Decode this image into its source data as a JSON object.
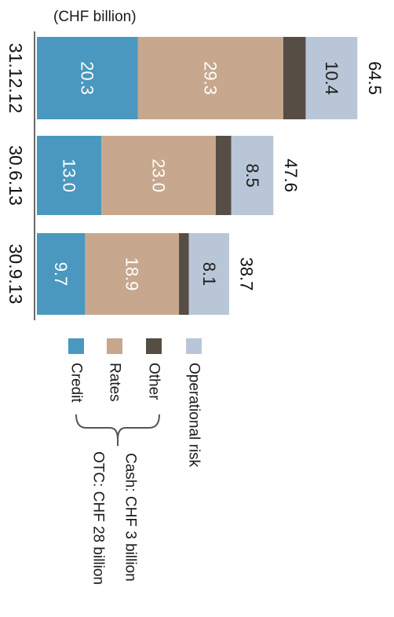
{
  "chart_data": {
    "type": "bar",
    "orientation": "horizontal",
    "stacked": true,
    "unit_label": "(CHF billion)",
    "categories": [
      "31.12.12",
      "30.6.13",
      "30.9.13"
    ],
    "series": [
      {
        "name": "Credit",
        "color": "#4a98bf",
        "values": [
          20.3,
          13.0,
          9.7
        ],
        "labels": [
          "20.3",
          "13.0",
          "9.7"
        ]
      },
      {
        "name": "Rates",
        "color": "#c7a88e",
        "values": [
          29.3,
          23.0,
          18.9
        ],
        "labels": [
          "29.3",
          "23.0",
          "18.9"
        ]
      },
      {
        "name": "Other",
        "color": "#564d44",
        "values": [
          4.5,
          3.1,
          2.0
        ],
        "labels": [
          "",
          "",
          ""
        ]
      },
      {
        "name": "Operational risk",
        "color": "#b9c6d8",
        "values": [
          10.4,
          8.5,
          8.1
        ],
        "labels": [
          "10.4",
          "8.5",
          "8.1"
        ]
      }
    ],
    "totals": [
      "64.5",
      "47.6",
      "38.7"
    ],
    "xlim": [
      0,
      70
    ],
    "legend_position": "bottom",
    "annotations": {
      "cash": "Cash: CHF 3 billion",
      "otc": "OTC: CHF 28 billion"
    },
    "grid": false
  }
}
